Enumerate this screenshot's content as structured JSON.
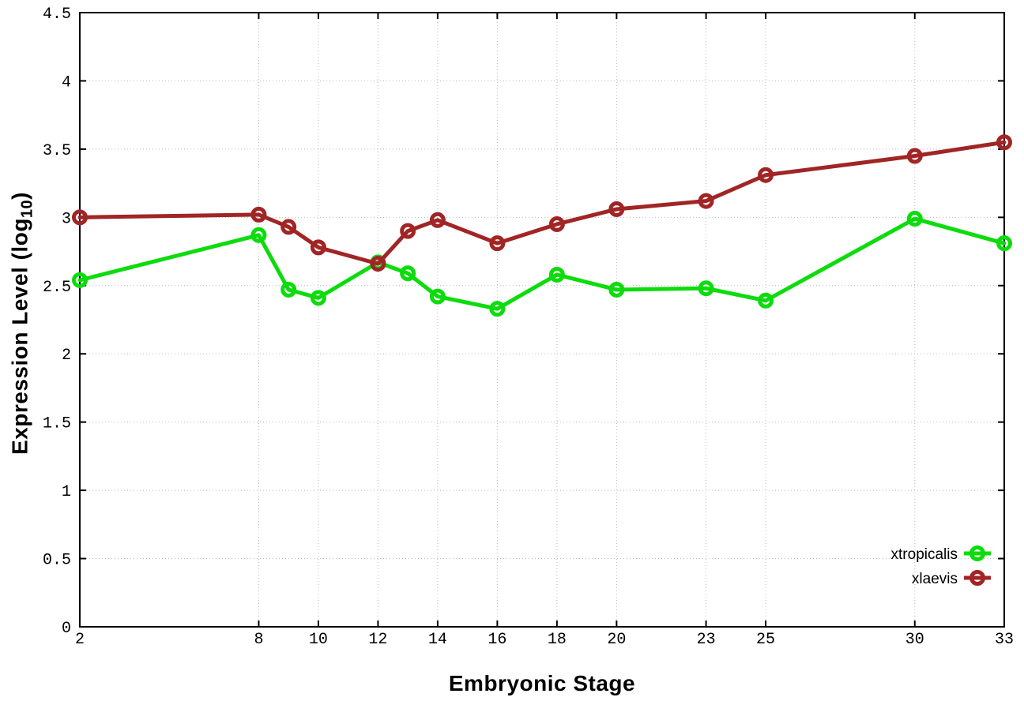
{
  "page": {
    "background": "#ffffff"
  },
  "chart_data": {
    "type": "line",
    "title": "",
    "xlabel": "Embryonic Stage",
    "ylabel": "Expression Level (log10)",
    "ylabel_parts": {
      "base": "Expression Level (log",
      "sub": "10",
      "close": ")"
    },
    "xlim": [
      2,
      33
    ],
    "ylim": [
      0,
      4.5
    ],
    "grid": true,
    "legend_position": "bottom-right-inside",
    "xticks": [
      2,
      8,
      10,
      12,
      14,
      16,
      18,
      20,
      23,
      25,
      30,
      33
    ],
    "yticks": [
      0,
      0.5,
      1,
      1.5,
      2,
      2.5,
      3,
      3.5,
      4,
      4.5
    ],
    "x": [
      2,
      8,
      9,
      10,
      12,
      13,
      14,
      16,
      18,
      20,
      23,
      25,
      30,
      33
    ],
    "series": [
      {
        "name": "xtropicalis",
        "color": "#0cdc0c",
        "values": [
          2.54,
          2.87,
          2.47,
          2.41,
          2.67,
          2.59,
          2.42,
          2.33,
          2.58,
          2.47,
          2.48,
          2.39,
          2.99,
          2.81
        ]
      },
      {
        "name": "xlaevis",
        "color": "#a12525",
        "values": [
          3.0,
          3.02,
          2.93,
          2.78,
          2.66,
          2.9,
          2.98,
          2.81,
          2.95,
          3.06,
          3.12,
          3.31,
          3.45,
          3.55
        ]
      }
    ]
  },
  "style": {
    "grid_color": "#bbbbbb",
    "axis_color": "#000000",
    "text_color": "#000000",
    "marker": "open-circle",
    "line_width": 5,
    "marker_radius": 7.5,
    "marker_stroke": 5
  }
}
